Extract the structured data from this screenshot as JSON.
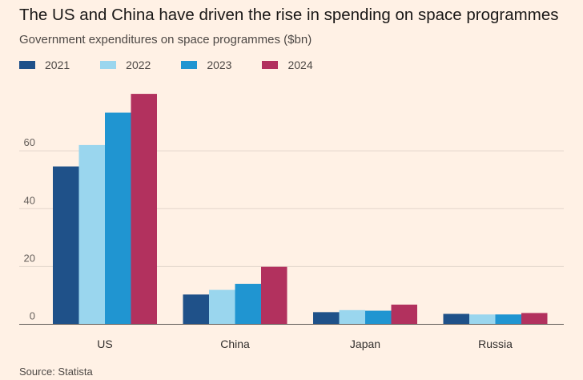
{
  "chart_data": {
    "type": "bar",
    "title": "The US and China have driven the rise in spending on space programmes",
    "subtitle": "Government expenditures on space programmes ($bn)",
    "source": "Source: Statista",
    "categories": [
      "US",
      "China",
      "Japan",
      "Russia"
    ],
    "series": [
      {
        "name": "2021",
        "color": "#1f5189",
        "values": [
          54.6,
          10.3,
          4.2,
          3.6
        ]
      },
      {
        "name": "2022",
        "color": "#9ad6ee",
        "values": [
          62.0,
          11.9,
          4.9,
          3.4
        ]
      },
      {
        "name": "2023",
        "color": "#2095d1",
        "values": [
          73.2,
          14.0,
          4.7,
          3.4
        ]
      },
      {
        "name": "2024",
        "color": "#b2315e",
        "values": [
          79.7,
          19.9,
          6.8,
          3.9
        ]
      }
    ],
    "yticks": [
      0,
      20,
      40,
      60
    ],
    "ylim": [
      0,
      80
    ],
    "grid": true,
    "legend": "top-left"
  }
}
